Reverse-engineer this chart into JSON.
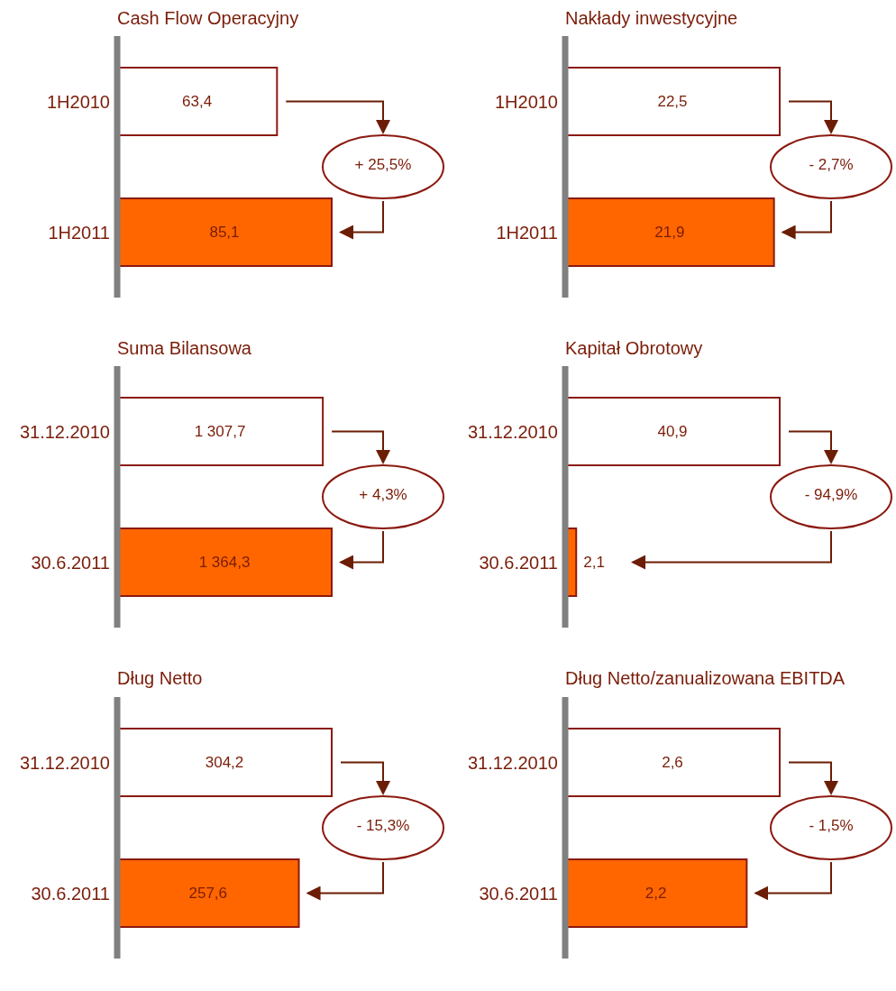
{
  "chart_data": [
    {
      "type": "bar",
      "orientation": "horizontal",
      "title": "Cash Flow Operacyjny",
      "categories": [
        "1H2010",
        "1H2011"
      ],
      "values": [
        63.4,
        85.1
      ],
      "colors": [
        "#ffffff",
        "#ff6600"
      ],
      "value_labels": [
        "63,4",
        "85,1"
      ],
      "tick_labels": "y",
      "annotations": [
        "+ 25,5%"
      ]
    },
    {
      "type": "bar",
      "orientation": "horizontal",
      "title": "Nakłady inwestycyjne",
      "categories": [
        "1H2010",
        "1H2011"
      ],
      "values": [
        22.5,
        21.9
      ],
      "colors": [
        "#ffffff",
        "#ff6600"
      ],
      "value_labels": [
        "22,5",
        "21,9"
      ],
      "tick_labels": "y",
      "annotations": [
        "- 2,7%"
      ]
    },
    {
      "type": "bar",
      "orientation": "horizontal",
      "title": "Suma Bilansowa",
      "categories": [
        "31.12.2010",
        "30.6.2011"
      ],
      "values": [
        1307.7,
        1364.3
      ],
      "colors": [
        "#ffffff",
        "#ff6600"
      ],
      "value_labels": [
        "1 307,7",
        "1 364,3"
      ],
      "tick_labels": "y",
      "annotations": [
        "+ 4,3%"
      ]
    },
    {
      "type": "bar",
      "orientation": "horizontal",
      "title": "Kapitał Obrotowy",
      "categories": [
        "31.12.2010",
        "30.6.2011"
      ],
      "values": [
        40.9,
        2.1
      ],
      "colors": [
        "#ffffff",
        "#ff6600"
      ],
      "value_labels": [
        "40,9",
        "2,1"
      ],
      "tick_labels": "y",
      "annotations": [
        "- 94,9%"
      ]
    },
    {
      "type": "bar",
      "orientation": "horizontal",
      "title": "Dług Netto",
      "categories": [
        "31.12.2010",
        "30.6.2011"
      ],
      "values": [
        304.2,
        257.6
      ],
      "colors": [
        "#ffffff",
        "#ff6600"
      ],
      "value_labels": [
        "304,2",
        "257,6"
      ],
      "tick_labels": "y",
      "annotations": [
        "- 15,3%"
      ]
    },
    {
      "type": "bar",
      "orientation": "horizontal",
      "title": "Dług Netto/zanualizowana EBITDA",
      "categories": [
        "31.12.2010",
        "30.6.2011"
      ],
      "values": [
        2.6,
        2.2
      ],
      "colors": [
        "#ffffff",
        "#ff6600"
      ],
      "value_labels": [
        "2,6",
        "2,2"
      ],
      "tick_labels": "y",
      "annotations": [
        "- 1,5%"
      ]
    }
  ]
}
